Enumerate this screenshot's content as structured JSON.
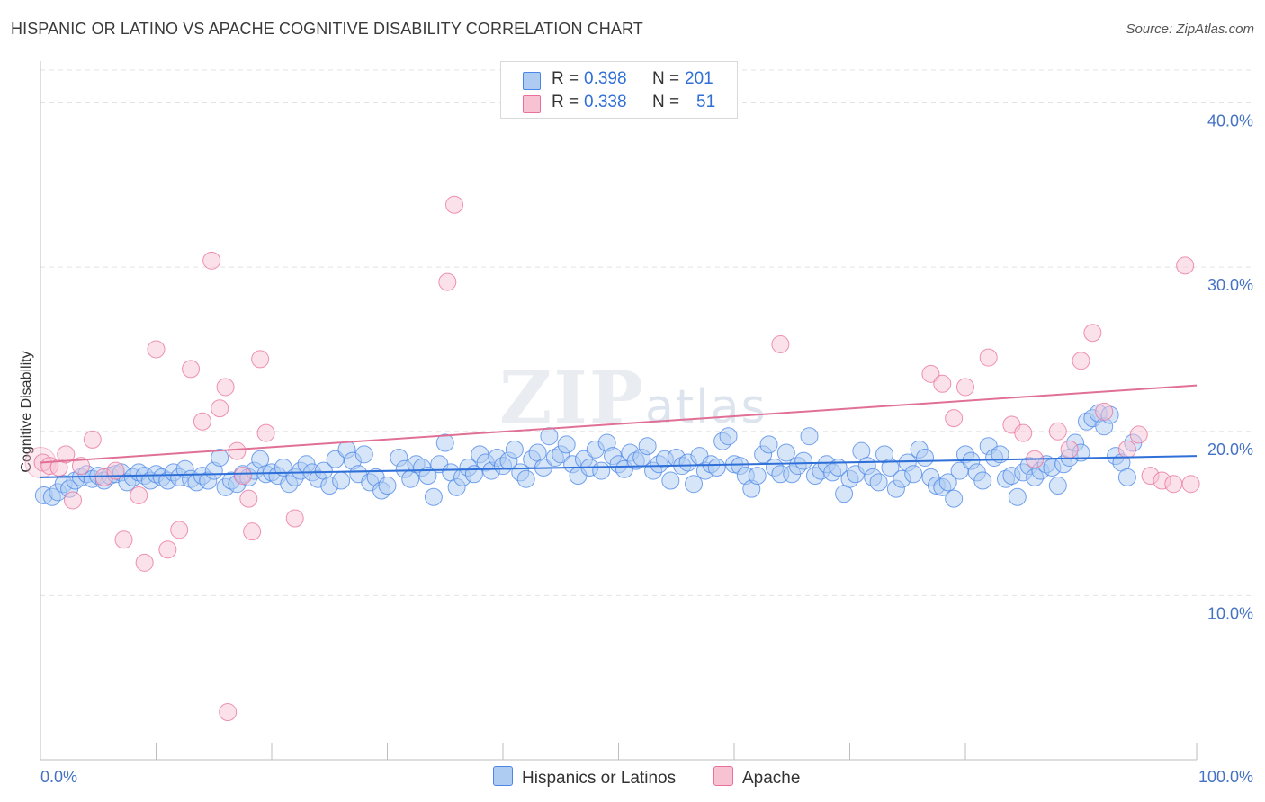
{
  "header": {
    "title": "HISPANIC OR LATINO VS APACHE COGNITIVE DISABILITY CORRELATION CHART",
    "source": "Source: ZipAtlas.com"
  },
  "watermark": {
    "main": "ZIP",
    "sub": "atlas"
  },
  "stats": {
    "rows": [
      {
        "r_label": "R =",
        "r_value": "0.398",
        "n_label": "N =",
        "n_value": "201",
        "color": "#aecbf2"
      },
      {
        "r_label": "R =",
        "r_value": "0.338",
        "n_label": "N =",
        "n_value": "51",
        "color": "#f7c3d3"
      }
    ]
  },
  "legend": {
    "items": [
      {
        "label": "Hispanics or Latinos",
        "color": "#aecbf2"
      },
      {
        "label": "Apache",
        "color": "#f7c3d3"
      }
    ]
  },
  "chart_data": {
    "type": "scatter",
    "title": "HISPANIC OR LATINO VS APACHE COGNITIVE DISABILITY CORRELATION CHART",
    "xlabel": "",
    "ylabel": "Cognitive Disability",
    "xlim": [
      0,
      100
    ],
    "ylim": [
      0,
      42
    ],
    "y_ticks": [
      10,
      20,
      30,
      40
    ],
    "y_tick_labels": [
      "10.0%",
      "20.0%",
      "30.0%",
      "40.0%"
    ],
    "x_tick_labels": [
      "0.0%",
      "100.0%"
    ],
    "grid": true,
    "series": [
      {
        "name": "Hispanics or Latinos",
        "color": "#4a86e8",
        "fill": "#aecbf2",
        "trend": {
          "x0": 0,
          "y0": 17.2,
          "x1": 100,
          "y1": 18.5,
          "color": "#2e6fd8"
        },
        "points": [
          [
            0.3,
            16.1
          ],
          [
            1.0,
            16.0
          ],
          [
            1.5,
            16.3
          ],
          [
            2.0,
            16.8
          ],
          [
            2.5,
            16.5
          ],
          [
            3.0,
            17.0
          ],
          [
            3.5,
            17.2
          ],
          [
            4.0,
            17.4
          ],
          [
            4.5,
            17.1
          ],
          [
            5.0,
            17.3
          ],
          [
            5.5,
            17.0
          ],
          [
            6.0,
            17.3
          ],
          [
            6.5,
            17.4
          ],
          [
            7.0,
            17.5
          ],
          [
            7.5,
            16.9
          ],
          [
            8.0,
            17.2
          ],
          [
            8.5,
            17.5
          ],
          [
            9.0,
            17.3
          ],
          [
            9.5,
            17.0
          ],
          [
            10.0,
            17.4
          ],
          [
            10.5,
            17.2
          ],
          [
            11.0,
            17.0
          ],
          [
            11.5,
            17.5
          ],
          [
            12.0,
            17.2
          ],
          [
            12.5,
            17.7
          ],
          [
            13.0,
            17.1
          ],
          [
            13.5,
            16.9
          ],
          [
            14.0,
            17.3
          ],
          [
            14.5,
            17.0
          ],
          [
            15.0,
            17.6
          ],
          [
            15.5,
            18.4
          ],
          [
            16.0,
            16.6
          ],
          [
            16.5,
            17.0
          ],
          [
            17.0,
            16.8
          ],
          [
            17.5,
            17.4
          ],
          [
            18.0,
            17.2
          ],
          [
            18.5,
            17.6
          ],
          [
            19.0,
            18.3
          ],
          [
            19.5,
            17.4
          ],
          [
            20.0,
            17.5
          ],
          [
            20.5,
            17.3
          ],
          [
            21.0,
            17.8
          ],
          [
            21.5,
            16.8
          ],
          [
            22.0,
            17.2
          ],
          [
            22.5,
            17.6
          ],
          [
            23.0,
            18.0
          ],
          [
            23.5,
            17.5
          ],
          [
            24.0,
            17.1
          ],
          [
            24.5,
            17.6
          ],
          [
            25.0,
            16.7
          ],
          [
            25.5,
            18.3
          ],
          [
            26.0,
            17.0
          ],
          [
            26.5,
            18.9
          ],
          [
            27.0,
            18.2
          ],
          [
            27.5,
            17.4
          ],
          [
            28.0,
            18.6
          ],
          [
            28.5,
            16.9
          ],
          [
            29.0,
            17.2
          ],
          [
            29.5,
            16.4
          ],
          [
            30.0,
            16.7
          ],
          [
            31.0,
            18.4
          ],
          [
            31.5,
            17.7
          ],
          [
            32.0,
            17.1
          ],
          [
            32.5,
            18.0
          ],
          [
            33.0,
            17.8
          ],
          [
            33.5,
            17.3
          ],
          [
            34.0,
            16.0
          ],
          [
            34.5,
            18.0
          ],
          [
            35.0,
            19.3
          ],
          [
            35.5,
            17.5
          ],
          [
            36.0,
            16.6
          ],
          [
            36.5,
            17.2
          ],
          [
            37.0,
            17.8
          ],
          [
            37.5,
            17.4
          ],
          [
            38.0,
            18.6
          ],
          [
            38.5,
            18.1
          ],
          [
            39.0,
            17.6
          ],
          [
            39.5,
            18.4
          ],
          [
            40.0,
            17.9
          ],
          [
            40.5,
            18.2
          ],
          [
            41.0,
            18.9
          ],
          [
            41.5,
            17.5
          ],
          [
            42.0,
            17.1
          ],
          [
            42.5,
            18.3
          ],
          [
            43.0,
            18.7
          ],
          [
            43.5,
            17.8
          ],
          [
            44.0,
            19.7
          ],
          [
            44.5,
            18.4
          ],
          [
            45.0,
            18.6
          ],
          [
            45.5,
            19.2
          ],
          [
            46.0,
            18.0
          ],
          [
            46.5,
            17.3
          ],
          [
            47.0,
            18.3
          ],
          [
            47.5,
            17.8
          ],
          [
            48.0,
            18.9
          ],
          [
            48.5,
            17.6
          ],
          [
            49.0,
            19.3
          ],
          [
            49.5,
            18.5
          ],
          [
            50.0,
            18.0
          ],
          [
            50.5,
            17.7
          ],
          [
            51.0,
            18.7
          ],
          [
            51.5,
            18.2
          ],
          [
            52.0,
            18.4
          ],
          [
            52.5,
            19.1
          ],
          [
            53.0,
            17.6
          ],
          [
            53.5,
            18.0
          ],
          [
            54.0,
            18.3
          ],
          [
            54.5,
            17.0
          ],
          [
            55.0,
            18.4
          ],
          [
            55.5,
            17.9
          ],
          [
            56.0,
            18.1
          ],
          [
            56.5,
            16.8
          ],
          [
            57.0,
            18.5
          ],
          [
            57.5,
            17.6
          ],
          [
            58.0,
            18.0
          ],
          [
            58.5,
            17.8
          ],
          [
            59.0,
            19.4
          ],
          [
            59.5,
            19.7
          ],
          [
            60.0,
            18.0
          ],
          [
            60.5,
            17.9
          ],
          [
            61.0,
            17.3
          ],
          [
            61.5,
            16.5
          ],
          [
            62.0,
            17.3
          ],
          [
            62.5,
            18.6
          ],
          [
            63.0,
            19.2
          ],
          [
            63.5,
            17.8
          ],
          [
            64.0,
            17.4
          ],
          [
            64.5,
            18.7
          ],
          [
            65.0,
            17.4
          ],
          [
            65.5,
            17.9
          ],
          [
            66.0,
            18.2
          ],
          [
            66.5,
            19.7
          ],
          [
            67.0,
            17.3
          ],
          [
            67.5,
            17.6
          ],
          [
            68.0,
            18.0
          ],
          [
            68.5,
            17.5
          ],
          [
            69.0,
            17.8
          ],
          [
            69.5,
            16.2
          ],
          [
            70.0,
            17.1
          ],
          [
            70.5,
            17.4
          ],
          [
            71.0,
            18.8
          ],
          [
            71.5,
            17.9
          ],
          [
            72.0,
            17.2
          ],
          [
            72.5,
            16.9
          ],
          [
            73.0,
            18.6
          ],
          [
            73.5,
            17.8
          ],
          [
            74.0,
            16.5
          ],
          [
            74.5,
            17.1
          ],
          [
            75.0,
            18.1
          ],
          [
            75.5,
            17.4
          ],
          [
            76.0,
            18.9
          ],
          [
            76.5,
            18.4
          ],
          [
            77.0,
            17.2
          ],
          [
            77.5,
            16.7
          ],
          [
            78.0,
            16.6
          ],
          [
            78.5,
            16.9
          ],
          [
            79.0,
            15.9
          ],
          [
            79.5,
            17.6
          ],
          [
            80.0,
            18.6
          ],
          [
            80.5,
            18.2
          ],
          [
            81.0,
            17.5
          ],
          [
            81.5,
            17.0
          ],
          [
            82.0,
            19.1
          ],
          [
            82.5,
            18.4
          ],
          [
            83.0,
            18.6
          ],
          [
            83.5,
            17.1
          ],
          [
            84.0,
            17.3
          ],
          [
            84.5,
            16.0
          ],
          [
            85.0,
            17.5
          ],
          [
            85.5,
            17.9
          ],
          [
            86.0,
            17.2
          ],
          [
            86.5,
            17.6
          ],
          [
            87.0,
            18.0
          ],
          [
            87.5,
            17.8
          ],
          [
            88.0,
            16.7
          ],
          [
            88.5,
            18.0
          ],
          [
            89.0,
            18.4
          ],
          [
            89.5,
            19.3
          ],
          [
            90.0,
            18.7
          ],
          [
            90.5,
            20.6
          ],
          [
            91.0,
            20.8
          ],
          [
            91.5,
            21.1
          ],
          [
            92.0,
            20.3
          ],
          [
            92.5,
            21.0
          ],
          [
            93.0,
            18.5
          ],
          [
            93.5,
            18.1
          ],
          [
            94.0,
            17.2
          ],
          [
            94.5,
            19.3
          ]
        ]
      },
      {
        "name": "Apache",
        "color": "#e8709a",
        "fill": "#f7c3d3",
        "trend": {
          "x0": 0,
          "y0": 18.1,
          "x1": 100,
          "y1": 22.8,
          "color": "#e07096"
        },
        "points": [
          [
            0.2,
            18.1
          ],
          [
            0.8,
            17.9
          ],
          [
            1.6,
            17.8
          ],
          [
            2.2,
            18.6
          ],
          [
            2.8,
            15.8
          ],
          [
            3.5,
            17.9
          ],
          [
            4.5,
            19.5
          ],
          [
            5.5,
            17.2
          ],
          [
            6.5,
            17.6
          ],
          [
            7.2,
            13.4
          ],
          [
            8.5,
            16.1
          ],
          [
            9.0,
            12.0
          ],
          [
            10.0,
            25.0
          ],
          [
            11.0,
            12.8
          ],
          [
            12.0,
            14.0
          ],
          [
            13.0,
            23.8
          ],
          [
            14.0,
            20.6
          ],
          [
            14.8,
            30.4
          ],
          [
            15.5,
            21.4
          ],
          [
            16.0,
            22.7
          ],
          [
            16.2,
            2.9
          ],
          [
            17.0,
            18.8
          ],
          [
            17.5,
            17.3
          ],
          [
            18.0,
            15.9
          ],
          [
            18.3,
            13.9
          ],
          [
            19.0,
            24.4
          ],
          [
            19.5,
            19.9
          ],
          [
            22.0,
            14.7
          ],
          [
            35.2,
            29.1
          ],
          [
            35.8,
            33.8
          ],
          [
            64.0,
            25.3
          ],
          [
            77.0,
            23.5
          ],
          [
            78.0,
            22.9
          ],
          [
            79.0,
            20.8
          ],
          [
            80.0,
            22.7
          ],
          [
            82.0,
            24.5
          ],
          [
            84.0,
            20.4
          ],
          [
            85.0,
            19.9
          ],
          [
            86.0,
            18.3
          ],
          [
            88.0,
            20.0
          ],
          [
            89.0,
            18.9
          ],
          [
            90.0,
            24.3
          ],
          [
            91.0,
            26.0
          ],
          [
            92.0,
            21.2
          ],
          [
            94.0,
            18.9
          ],
          [
            95.0,
            19.8
          ],
          [
            96.0,
            17.3
          ],
          [
            97.0,
            17.0
          ],
          [
            98.0,
            16.8
          ],
          [
            99.0,
            30.1
          ],
          [
            99.5,
            16.8
          ]
        ]
      }
    ]
  }
}
